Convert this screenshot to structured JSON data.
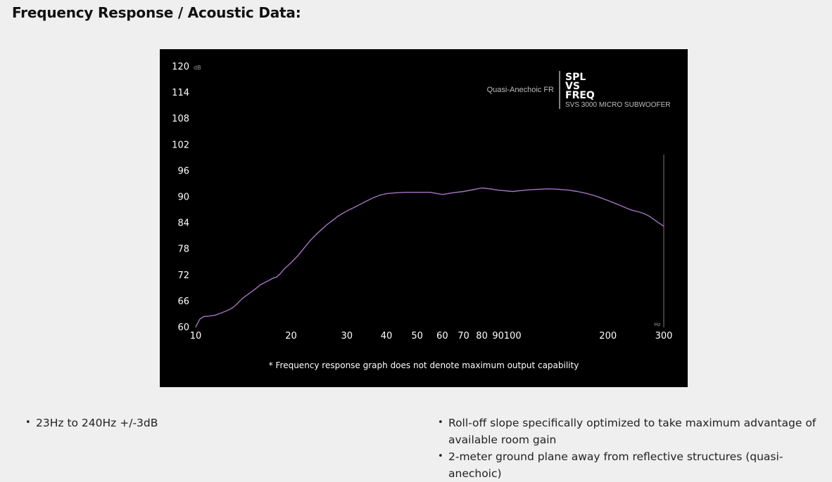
{
  "heading": "Frequency Response / Acoustic Data:",
  "chart_data": {
    "type": "line",
    "title": "SPL VS FREQ",
    "title_lines": [
      "SPL",
      "VS",
      "FREQ"
    ],
    "subtitle": "SVS 3000 MICRO SUBWOOFER",
    "legend": "Quasi-Anechoic FR",
    "legend_position": "top-right",
    "footnote": "* Frequency response graph does not denote maximum output capability",
    "x_scale": "log",
    "xlim": [
      10,
      300
    ],
    "xlabel": "Hz",
    "x_ticks": [
      10,
      20,
      30,
      40,
      50,
      60,
      70,
      80,
      90,
      100,
      200,
      300
    ],
    "x_tick_labels": [
      "10",
      "20",
      "30",
      "40",
      "50",
      "60",
      "70",
      "80",
      "90",
      "100",
      "200",
      "300"
    ],
    "ylim": [
      60,
      120
    ],
    "ylabel": "dB",
    "y_ticks": [
      120,
      114,
      108,
      102,
      96,
      90,
      84,
      78,
      72,
      66,
      60
    ],
    "y_tick_labels": [
      "120",
      "114",
      "108",
      "102",
      "96",
      "90",
      "84",
      "78",
      "72",
      "66",
      "60"
    ],
    "grid": false,
    "colors": {
      "background": "#000000",
      "series": "#a673c4",
      "text": "#ffffff",
      "muted": "#9a9a9a"
    },
    "series": [
      {
        "name": "Quasi-Anechoic FR",
        "x": [
          10,
          10.3,
          10.6,
          11,
          11.5,
          12,
          12.5,
          13,
          13.5,
          14,
          14.5,
          15,
          15.5,
          16,
          16.5,
          17,
          17.5,
          18,
          18.5,
          19,
          20,
          21,
          22,
          23,
          24,
          25,
          26,
          27,
          28,
          29,
          30,
          32,
          34,
          36,
          38,
          40,
          43,
          46,
          50,
          55,
          60,
          65,
          70,
          75,
          80,
          85,
          90,
          100,
          110,
          120,
          130,
          140,
          150,
          160,
          170,
          180,
          190,
          200,
          210,
          220,
          230,
          240,
          250,
          260,
          270,
          280,
          290,
          300
        ],
        "y": [
          60.1,
          61.9,
          62.5,
          62.6,
          62.8,
          63.3,
          63.8,
          64.4,
          65.4,
          66.6,
          67.4,
          68.2,
          69,
          69.8,
          70.3,
          70.8,
          71.3,
          71.6,
          72.4,
          73.4,
          74.9,
          76.5,
          78.3,
          80,
          81.4,
          82.6,
          83.7,
          84.6,
          85.5,
          86.2,
          86.8,
          87.8,
          88.8,
          89.7,
          90.4,
          90.8,
          91,
          91.1,
          91.1,
          91.1,
          90.6,
          91,
          91.3,
          91.7,
          92.1,
          91.9,
          91.6,
          91.3,
          91.6,
          91.8,
          91.9,
          91.8,
          91.6,
          91.3,
          90.9,
          90.4,
          89.8,
          89.2,
          88.6,
          88,
          87.4,
          86.9,
          86.6,
          86.2,
          85.6,
          84.8,
          84,
          83.3
        ]
      }
    ]
  },
  "bullets_left": [
    "23Hz to 240Hz +/-3dB"
  ],
  "bullets_right": [
    "Roll-off slope specifically optimized to take maximum advantage of available room gain",
    "2-meter ground plane away from reflective structures (quasi-anechoic)"
  ]
}
